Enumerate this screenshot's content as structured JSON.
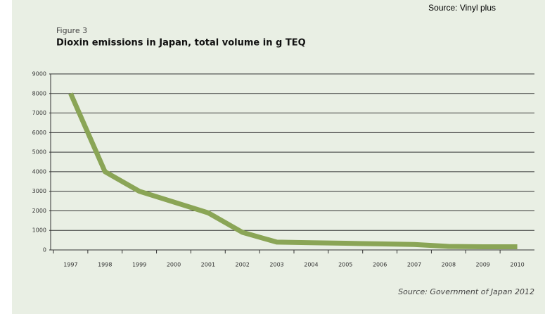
{
  "chart_data": {
    "type": "line",
    "note": "Source: Vinyl plus",
    "figure_label": "Figure 3",
    "title": "Dioxin emissions in Japan, total volume in g TEQ",
    "source": "Source: Government of Japan 2012",
    "categories": [
      "1997",
      "1998",
      "1999",
      "2000",
      "2001",
      "2002",
      "2003",
      "2004",
      "2005",
      "2006",
      "2007",
      "2008",
      "2009",
      "2010"
    ],
    "series": [
      {
        "name": "Dioxin emissions",
        "color": "#8aa556",
        "values": [
          8000,
          4000,
          3000,
          2450,
          1900,
          900,
          400,
          370,
          340,
          310,
          280,
          180,
          160,
          160
        ]
      }
    ],
    "ylim": [
      0,
      9000
    ],
    "yticks": [
      0,
      1000,
      2000,
      3000,
      4000,
      5000,
      6000,
      7000,
      8000,
      9000
    ],
    "grid": true,
    "legend": false
  }
}
